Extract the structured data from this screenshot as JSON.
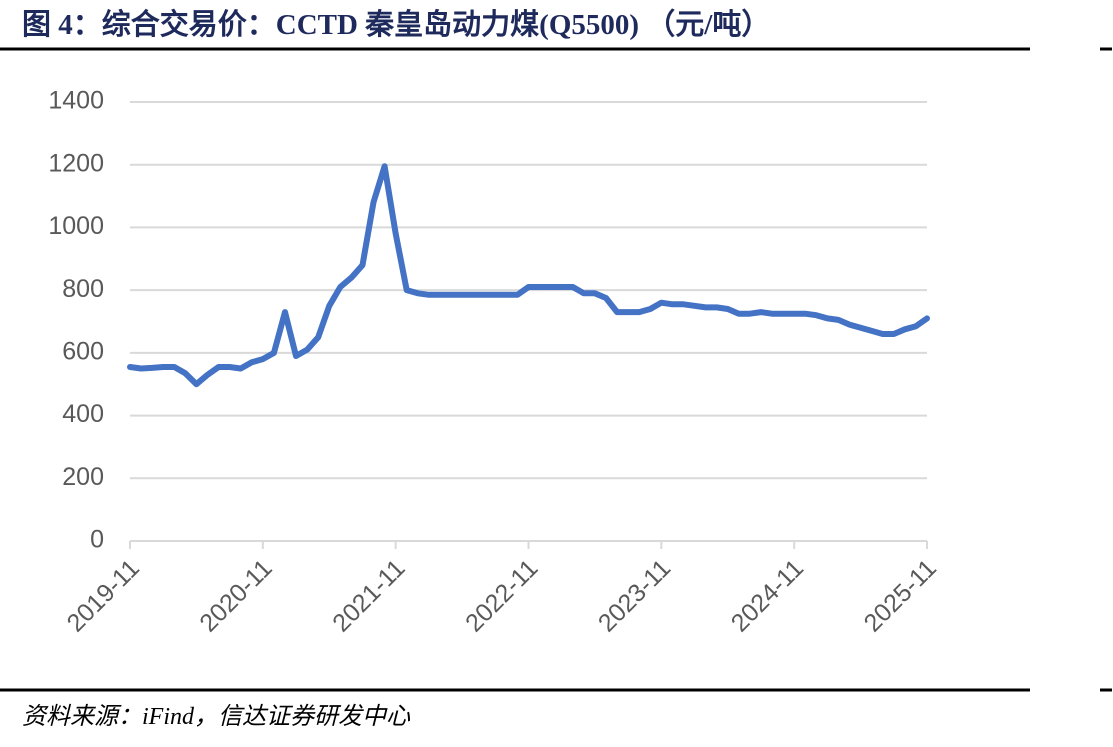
{
  "chart_data": {
    "type": "line",
    "title": "图 4：综合交易价：CCTD 秦皇岛动力煤(Q5500) （元/吨）",
    "source": "资料来源：iFind，信达证券研发中心",
    "x": [
      "2019-11",
      "2019-12",
      "2020-01",
      "2020-02",
      "2020-03",
      "2020-04",
      "2020-05",
      "2020-06",
      "2020-07",
      "2020-08",
      "2020-09",
      "2020-10",
      "2020-11",
      "2020-12",
      "2021-01",
      "2021-02",
      "2021-03",
      "2021-04",
      "2021-05",
      "2021-06",
      "2021-07",
      "2021-08",
      "2021-09",
      "2021-10",
      "2021-11",
      "2021-12",
      "2022-01",
      "2022-02",
      "2022-03",
      "2022-04",
      "2022-05",
      "2022-06",
      "2022-07",
      "2022-08",
      "2022-09",
      "2022-10",
      "2022-11",
      "2022-12",
      "2023-01",
      "2023-02",
      "2023-03",
      "2023-04",
      "2023-05",
      "2023-06",
      "2023-07",
      "2023-08",
      "2023-09",
      "2023-10",
      "2023-11",
      "2023-12",
      "2024-01",
      "2024-02",
      "2024-03",
      "2024-04",
      "2024-05",
      "2024-06",
      "2024-07",
      "2024-08",
      "2024-09",
      "2024-10",
      "2024-11",
      "2024-12",
      "2025-01",
      "2025-02",
      "2025-03",
      "2025-04",
      "2025-05",
      "2025-06",
      "2025-07",
      "2025-08",
      "2025-09",
      "2025-10",
      "2025-11"
    ],
    "values": [
      555,
      550,
      552,
      555,
      555,
      535,
      500,
      530,
      555,
      555,
      550,
      570,
      580,
      600,
      730,
      590,
      610,
      650,
      750,
      810,
      840,
      880,
      1080,
      1195,
      980,
      800,
      790,
      785,
      785,
      785,
      785,
      785,
      785,
      785,
      785,
      785,
      810,
      810,
      810,
      810,
      810,
      790,
      790,
      775,
      730,
      730,
      730,
      740,
      760,
      755,
      755,
      750,
      745,
      745,
      740,
      725,
      725,
      730,
      725,
      725,
      725,
      725,
      720,
      710,
      705,
      690,
      680,
      670,
      660,
      660,
      675,
      685,
      710
    ],
    "color": "#4472c4",
    "xticks": [
      "2019-11",
      "2020-11",
      "2021-11",
      "2022-11",
      "2023-11",
      "2024-11",
      "2025-11"
    ],
    "ylim": [
      0,
      1400
    ],
    "yticks": [
      0,
      200,
      400,
      600,
      800,
      1000,
      1200,
      1400
    ],
    "grid": true
  }
}
